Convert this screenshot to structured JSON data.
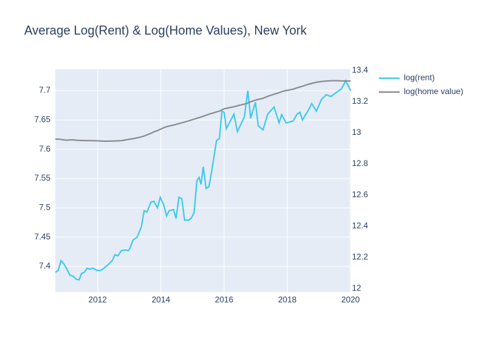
{
  "chart_data": {
    "type": "line",
    "title": "Average Log(Rent) & Log(Home Values), New York",
    "x": [
      2010.66,
      2010.75,
      2010.84,
      2010.92,
      2011.03,
      2011.12,
      2011.23,
      2011.32,
      2011.41,
      2011.49,
      2011.58,
      2011.67,
      2011.76,
      2011.85,
      2011.98,
      2012.09,
      2012.2,
      2012.33,
      2012.46,
      2012.55,
      2012.64,
      2012.75,
      2012.86,
      2012.97,
      2013.03,
      2013.12,
      2013.25,
      2013.38,
      2013.47,
      2013.56,
      2013.69,
      2013.78,
      2013.89,
      2013.98,
      2014.09,
      2014.18,
      2014.26,
      2014.4,
      2014.48,
      2014.57,
      2014.66,
      2014.75,
      2014.88,
      2014.97,
      2015.05,
      2015.14,
      2015.21,
      2015.27,
      2015.34,
      2015.43,
      2015.52,
      2015.6,
      2015.76,
      2015.85,
      2015.93,
      2016.0,
      2016.07,
      2016.31,
      2016.42,
      2016.64,
      2016.75,
      2016.84,
      2016.99,
      2017.08,
      2017.23,
      2017.38,
      2017.58,
      2017.74,
      2017.82,
      2017.96,
      2018.18,
      2018.31,
      2018.4,
      2018.48,
      2018.68,
      2018.77,
      2018.92,
      2019.08,
      2019.23,
      2019.38,
      2019.63,
      2019.71,
      2019.85,
      2020
    ],
    "series": [
      {
        "name": "log(rent)",
        "color": "#3ec9ea",
        "values": [
          7.39,
          7.393,
          7.41,
          7.405,
          7.395,
          7.385,
          7.383,
          7.378,
          7.377,
          7.388,
          7.39,
          7.397,
          7.395,
          7.397,
          7.393,
          7.393,
          7.397,
          7.403,
          7.41,
          7.42,
          7.418,
          7.427,
          7.428,
          7.427,
          7.432,
          7.445,
          7.45,
          7.467,
          7.495,
          7.493,
          7.51,
          7.511,
          7.5,
          7.518,
          7.505,
          7.486,
          7.495,
          7.497,
          7.482,
          7.518,
          7.516,
          7.479,
          7.479,
          7.483,
          7.492,
          7.547,
          7.552,
          7.54,
          7.57,
          7.533,
          7.536,
          7.56,
          7.615,
          7.618,
          7.665,
          7.663,
          7.635,
          7.66,
          7.63,
          7.655,
          7.7,
          7.653,
          7.68,
          7.64,
          7.633,
          7.66,
          7.672,
          7.645,
          7.659,
          7.645,
          7.648,
          7.66,
          7.663,
          7.65,
          7.668,
          7.678,
          7.665,
          7.685,
          7.693,
          7.69,
          7.7,
          7.703,
          7.717,
          7.7
        ]
      },
      {
        "name": "log(home value)",
        "color": "#888a8e",
        "axis": "y2",
        "values": [
          12.96,
          12.96,
          12.958,
          12.955,
          12.953,
          12.955,
          12.955,
          12.953,
          12.952,
          12.951,
          12.951,
          12.95,
          12.95,
          12.95,
          12.949,
          12.948,
          12.947,
          12.947,
          12.948,
          12.948,
          12.949,
          12.95,
          12.954,
          12.958,
          12.96,
          12.963,
          12.968,
          12.975,
          12.98,
          12.987,
          12.998,
          13.007,
          13.015,
          13.023,
          13.033,
          13.04,
          13.044,
          13.05,
          13.055,
          13.06,
          13.065,
          13.07,
          13.077,
          13.083,
          13.088,
          13.094,
          13.098,
          13.102,
          13.107,
          13.113,
          13.12,
          13.125,
          13.135,
          13.14,
          13.148,
          13.155,
          13.158,
          13.168,
          13.174,
          13.185,
          13.192,
          13.2,
          13.21,
          13.215,
          13.222,
          13.235,
          13.248,
          13.258,
          13.265,
          13.272,
          13.28,
          13.29,
          13.295,
          13.3,
          13.313,
          13.318,
          13.325,
          13.33,
          13.333,
          13.335,
          13.335,
          13.334,
          13.334,
          13.333
        ]
      }
    ],
    "xlim": [
      2010.66,
      2020
    ],
    "xticks": [
      2012,
      2014,
      2016,
      2018,
      2020
    ],
    "ylim": [
      7.3563,
      7.7366
    ],
    "yticks": [
      7.4,
      7.45,
      7.5,
      7.55,
      7.6,
      7.65,
      7.7
    ],
    "y2lim": [
      11.978,
      13.409
    ],
    "y2ticks": [
      12,
      12.2,
      12.4,
      12.6,
      12.8,
      13,
      13.2,
      13.4
    ],
    "grid": true
  }
}
